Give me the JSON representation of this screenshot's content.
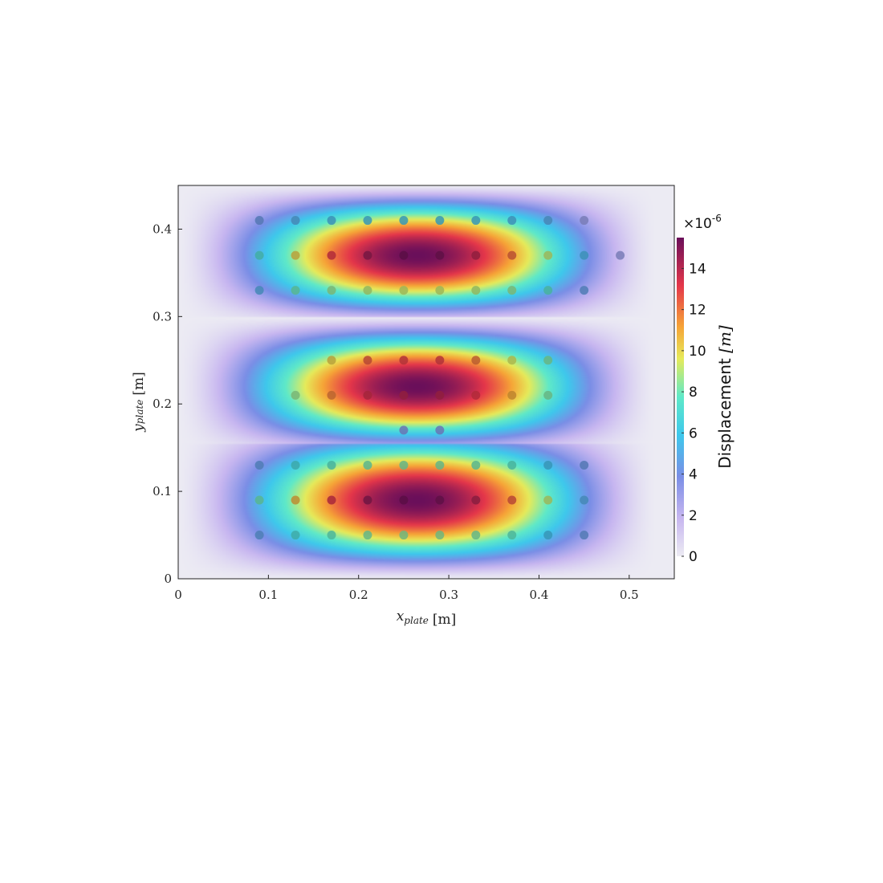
{
  "chart_data": {
    "type": "heatmap",
    "title": "",
    "xlabel": {
      "main": "x",
      "sub": "plate",
      "unit": "[m]"
    },
    "ylabel": {
      "main": "y",
      "sub": "plate",
      "unit": "[m]"
    },
    "xlim": [
      0,
      0.55
    ],
    "ylim": [
      0,
      0.45
    ],
    "xticks": [
      0,
      0.1,
      0.2,
      0.3,
      0.4,
      0.5
    ],
    "xtick_labels": [
      "0",
      "0.1",
      "0.2",
      "0.3",
      "0.4",
      "0.5"
    ],
    "yticks": [
      0,
      0.1,
      0.2,
      0.3,
      0.4
    ],
    "ytick_labels": [
      "0",
      "0.1",
      "0.2",
      "0.3",
      "0.4"
    ],
    "field": {
      "description": "plate displacement magnitude, 3 antinode bands in y",
      "peak_value": 15.5,
      "x_center": 0.26,
      "band_centers_y": [
        0.09,
        0.22,
        0.37
      ],
      "nodal_lines_y": [
        0.155,
        0.3
      ]
    },
    "colorbar": {
      "label": "Displacement [m]",
      "label_text": "Displacement ",
      "label_unit": "[m]",
      "multiplier": "×10",
      "exponent": "-6",
      "range": [
        0,
        15.5
      ],
      "ticks": [
        0,
        2,
        4,
        6,
        8,
        10,
        12,
        14
      ],
      "tick_labels": [
        "0",
        "2",
        "4",
        "6",
        "8",
        "10",
        "12",
        "14"
      ]
    },
    "sensor_points": [
      {
        "x": 0.09,
        "y": 0.41,
        "v": 4.3
      },
      {
        "x": 0.13,
        "y": 0.41,
        "v": 5.0
      },
      {
        "x": 0.17,
        "y": 0.41,
        "v": 5.4
      },
      {
        "x": 0.21,
        "y": 0.41,
        "v": 5.6
      },
      {
        "x": 0.25,
        "y": 0.41,
        "v": 5.7
      },
      {
        "x": 0.29,
        "y": 0.41,
        "v": 5.7
      },
      {
        "x": 0.33,
        "y": 0.41,
        "v": 5.6
      },
      {
        "x": 0.37,
        "y": 0.41,
        "v": 5.3
      },
      {
        "x": 0.41,
        "y": 0.41,
        "v": 4.9
      },
      {
        "x": 0.45,
        "y": 0.41,
        "v": 3.0
      },
      {
        "x": 0.09,
        "y": 0.37,
        "v": 7.2
      },
      {
        "x": 0.13,
        "y": 0.37,
        "v": 10.2
      },
      {
        "x": 0.17,
        "y": 0.37,
        "v": 13.2
      },
      {
        "x": 0.21,
        "y": 0.37,
        "v": 14.6
      },
      {
        "x": 0.25,
        "y": 0.37,
        "v": 15.3
      },
      {
        "x": 0.29,
        "y": 0.37,
        "v": 15.2
      },
      {
        "x": 0.33,
        "y": 0.37,
        "v": 14.0
      },
      {
        "x": 0.37,
        "y": 0.37,
        "v": 12.3
      },
      {
        "x": 0.41,
        "y": 0.37,
        "v": 9.2
      },
      {
        "x": 0.45,
        "y": 0.37,
        "v": 5.4
      },
      {
        "x": 0.49,
        "y": 0.37,
        "v": 3.0
      },
      {
        "x": 0.09,
        "y": 0.33,
        "v": 5.0
      },
      {
        "x": 0.13,
        "y": 0.33,
        "v": 8.0
      },
      {
        "x": 0.17,
        "y": 0.33,
        "v": 8.6
      },
      {
        "x": 0.21,
        "y": 0.33,
        "v": 9.0
      },
      {
        "x": 0.25,
        "y": 0.33,
        "v": 9.2
      },
      {
        "x": 0.29,
        "y": 0.33,
        "v": 9.2
      },
      {
        "x": 0.33,
        "y": 0.33,
        "v": 9.0
      },
      {
        "x": 0.37,
        "y": 0.33,
        "v": 8.6
      },
      {
        "x": 0.41,
        "y": 0.33,
        "v": 7.6
      },
      {
        "x": 0.45,
        "y": 0.33,
        "v": 4.5
      },
      {
        "x": 0.17,
        "y": 0.25,
        "v": 10.2
      },
      {
        "x": 0.21,
        "y": 0.25,
        "v": 12.5
      },
      {
        "x": 0.25,
        "y": 0.25,
        "v": 13.0
      },
      {
        "x": 0.29,
        "y": 0.25,
        "v": 13.0
      },
      {
        "x": 0.33,
        "y": 0.25,
        "v": 12.0
      },
      {
        "x": 0.37,
        "y": 0.25,
        "v": 9.5
      },
      {
        "x": 0.41,
        "y": 0.25,
        "v": 8.3
      },
      {
        "x": 0.13,
        "y": 0.21,
        "v": 8.6
      },
      {
        "x": 0.17,
        "y": 0.21,
        "v": 11.8
      },
      {
        "x": 0.21,
        "y": 0.21,
        "v": 13.5
      },
      {
        "x": 0.25,
        "y": 0.21,
        "v": 14.0
      },
      {
        "x": 0.29,
        "y": 0.21,
        "v": 14.0
      },
      {
        "x": 0.33,
        "y": 0.21,
        "v": 13.2
      },
      {
        "x": 0.37,
        "y": 0.21,
        "v": 11.0
      },
      {
        "x": 0.41,
        "y": 0.21,
        "v": 8.3
      },
      {
        "x": 0.25,
        "y": 0.17,
        "v": 3.5
      },
      {
        "x": 0.29,
        "y": 0.17,
        "v": 3.5
      },
      {
        "x": 0.09,
        "y": 0.13,
        "v": 4.5
      },
      {
        "x": 0.13,
        "y": 0.13,
        "v": 6.8
      },
      {
        "x": 0.17,
        "y": 0.13,
        "v": 7.6
      },
      {
        "x": 0.21,
        "y": 0.13,
        "v": 8.0
      },
      {
        "x": 0.25,
        "y": 0.13,
        "v": 8.2
      },
      {
        "x": 0.29,
        "y": 0.13,
        "v": 8.2
      },
      {
        "x": 0.33,
        "y": 0.13,
        "v": 8.0
      },
      {
        "x": 0.37,
        "y": 0.13,
        "v": 7.6
      },
      {
        "x": 0.41,
        "y": 0.13,
        "v": 5.6
      },
      {
        "x": 0.45,
        "y": 0.13,
        "v": 4.3
      },
      {
        "x": 0.09,
        "y": 0.09,
        "v": 8.0
      },
      {
        "x": 0.13,
        "y": 0.09,
        "v": 10.8
      },
      {
        "x": 0.17,
        "y": 0.09,
        "v": 13.4
      },
      {
        "x": 0.21,
        "y": 0.09,
        "v": 14.8
      },
      {
        "x": 0.25,
        "y": 0.09,
        "v": 15.3
      },
      {
        "x": 0.29,
        "y": 0.09,
        "v": 15.2
      },
      {
        "x": 0.33,
        "y": 0.09,
        "v": 14.2
      },
      {
        "x": 0.37,
        "y": 0.09,
        "v": 12.5
      },
      {
        "x": 0.41,
        "y": 0.09,
        "v": 9.2
      },
      {
        "x": 0.45,
        "y": 0.09,
        "v": 5.0
      },
      {
        "x": 0.09,
        "y": 0.05,
        "v": 4.6
      },
      {
        "x": 0.13,
        "y": 0.05,
        "v": 7.0
      },
      {
        "x": 0.17,
        "y": 0.05,
        "v": 7.8
      },
      {
        "x": 0.21,
        "y": 0.05,
        "v": 8.2
      },
      {
        "x": 0.25,
        "y": 0.05,
        "v": 8.4
      },
      {
        "x": 0.29,
        "y": 0.05,
        "v": 8.4
      },
      {
        "x": 0.33,
        "y": 0.05,
        "v": 8.2
      },
      {
        "x": 0.37,
        "y": 0.05,
        "v": 7.8
      },
      {
        "x": 0.41,
        "y": 0.05,
        "v": 5.6
      },
      {
        "x": 0.45,
        "y": 0.05,
        "v": 4.4
      }
    ]
  }
}
